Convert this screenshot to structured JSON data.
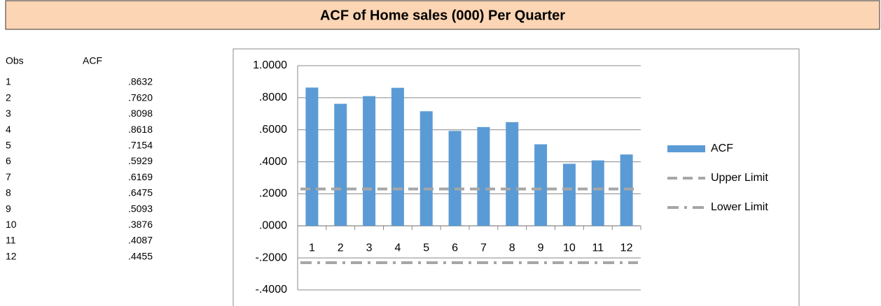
{
  "table": {
    "columns": [
      "Obs",
      "ACF"
    ],
    "rows": [
      [
        "1",
        ".8632"
      ],
      [
        "2",
        ".7620"
      ],
      [
        "3",
        ".8098"
      ],
      [
        "4",
        ".8618"
      ],
      [
        "5",
        ".7154"
      ],
      [
        "6",
        ".5929"
      ],
      [
        "7",
        ".6169"
      ],
      [
        "8",
        ".6475"
      ],
      [
        "9",
        ".5093"
      ],
      [
        "10",
        ".3876"
      ],
      [
        "11",
        ".4087"
      ],
      [
        "12",
        ".4455"
      ]
    ]
  },
  "chart_data": {
    "type": "bar",
    "title": "ACF of Home sales (000) Per Quarter",
    "categories": [
      "1",
      "2",
      "3",
      "4",
      "5",
      "6",
      "7",
      "8",
      "9",
      "10",
      "11",
      "12"
    ],
    "series": [
      {
        "name": "ACF",
        "color": "#5b9bd5",
        "type": "bar",
        "values": [
          0.8632,
          0.762,
          0.8098,
          0.8618,
          0.7154,
          0.5929,
          0.6169,
          0.6475,
          0.5093,
          0.3876,
          0.4087,
          0.4455
        ]
      },
      {
        "name": "Upper Limit",
        "color": "#a6a6a6",
        "type": "line",
        "dash": "dash",
        "values": [
          0.23,
          0.23,
          0.23,
          0.23,
          0.23,
          0.23,
          0.23,
          0.23,
          0.23,
          0.23,
          0.23,
          0.23
        ]
      },
      {
        "name": "Lower Limit",
        "color": "#a6a6a6",
        "type": "line",
        "dash": "dashdot",
        "values": [
          -0.23,
          -0.23,
          -0.23,
          -0.23,
          -0.23,
          -0.23,
          -0.23,
          -0.23,
          -0.23,
          -0.23,
          -0.23,
          -0.23
        ]
      }
    ],
    "ylim": [
      -0.4,
      1.0
    ],
    "yticks": [
      {
        "value": -0.4,
        "label": "-.4000"
      },
      {
        "value": -0.2,
        "label": "-.2000"
      },
      {
        "value": 0,
        "label": ".0000"
      },
      {
        "value": 0.2,
        "label": ".2000"
      },
      {
        "value": 0.4,
        "label": ".4000"
      },
      {
        "value": 0.6,
        "label": ".6000"
      },
      {
        "value": 0.8,
        "label": ".8000"
      },
      {
        "value": 1.0,
        "label": "1.0000"
      }
    ],
    "grid": true,
    "legend": "right"
  }
}
